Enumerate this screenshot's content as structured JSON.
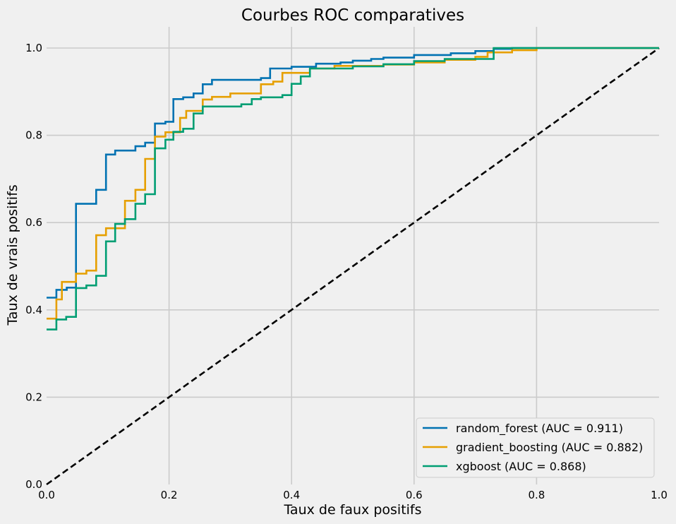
{
  "chart_data": {
    "type": "line",
    "title": "Courbes ROC comparatives",
    "xlabel": "Taux de faux positifs",
    "ylabel": "Taux de vrais positifs",
    "xlim": [
      0.0,
      1.0
    ],
    "ylim": [
      0.0,
      1.0
    ],
    "xticks": [
      "0.0",
      "0.2",
      "0.4",
      "0.6",
      "0.8",
      "1.0"
    ],
    "yticks": [
      "0.0",
      "0.2",
      "0.4",
      "0.6",
      "0.8",
      "1.0"
    ],
    "grid": true,
    "legend_position": "lower-right",
    "chance_line": {
      "x": [
        0,
        1
      ],
      "y": [
        0,
        1
      ],
      "color": "#000000",
      "style": "dashed"
    },
    "series": [
      {
        "name": "random_forest (AUC = 0.911)",
        "color": "#0072B2",
        "x": [
          0.0,
          0.016,
          0.016,
          0.033,
          0.033,
          0.048,
          0.048,
          0.081,
          0.081,
          0.097,
          0.097,
          0.112,
          0.112,
          0.145,
          0.145,
          0.161,
          0.161,
          0.177,
          0.177,
          0.194,
          0.194,
          0.207,
          0.207,
          0.223,
          0.223,
          0.24,
          0.24,
          0.255,
          0.255,
          0.27,
          0.27,
          0.35,
          0.35,
          0.365,
          0.365,
          0.4,
          0.4,
          0.44,
          0.44,
          0.48,
          0.48,
          0.5,
          0.5,
          0.53,
          0.53,
          0.55,
          0.55,
          0.6,
          0.6,
          0.66,
          0.66,
          0.7,
          0.7,
          0.73,
          0.73,
          0.76,
          0.76,
          1.0
        ],
        "y": [
          0.428,
          0.428,
          0.446,
          0.446,
          0.451,
          0.451,
          0.643,
          0.643,
          0.675,
          0.675,
          0.756,
          0.756,
          0.765,
          0.765,
          0.775,
          0.775,
          0.783,
          0.783,
          0.827,
          0.827,
          0.831,
          0.831,
          0.883,
          0.883,
          0.887,
          0.887,
          0.896,
          0.896,
          0.917,
          0.917,
          0.927,
          0.927,
          0.931,
          0.931,
          0.953,
          0.953,
          0.957,
          0.957,
          0.964,
          0.964,
          0.967,
          0.967,
          0.971,
          0.971,
          0.975,
          0.975,
          0.978,
          0.978,
          0.984,
          0.984,
          0.988,
          0.988,
          0.993,
          0.993,
          0.998,
          0.998,
          1.0,
          1.0
        ]
      },
      {
        "name": "gradient_boosting (AUC = 0.882)",
        "color": "#E69F00",
        "x": [
          0.0,
          0.016,
          0.016,
          0.025,
          0.025,
          0.048,
          0.048,
          0.065,
          0.065,
          0.081,
          0.081,
          0.097,
          0.097,
          0.128,
          0.128,
          0.145,
          0.145,
          0.161,
          0.161,
          0.177,
          0.177,
          0.194,
          0.194,
          0.218,
          0.218,
          0.228,
          0.228,
          0.255,
          0.255,
          0.27,
          0.27,
          0.3,
          0.3,
          0.35,
          0.35,
          0.37,
          0.37,
          0.385,
          0.385,
          0.43,
          0.43,
          0.47,
          0.47,
          0.55,
          0.55,
          0.6,
          0.6,
          0.65,
          0.65,
          0.7,
          0.7,
          0.72,
          0.72,
          0.76,
          0.76,
          0.8,
          0.8,
          1.0
        ],
        "y": [
          0.38,
          0.38,
          0.424,
          0.424,
          0.464,
          0.464,
          0.483,
          0.483,
          0.49,
          0.49,
          0.571,
          0.571,
          0.587,
          0.587,
          0.65,
          0.65,
          0.675,
          0.675,
          0.746,
          0.746,
          0.797,
          0.797,
          0.807,
          0.807,
          0.84,
          0.84,
          0.856,
          0.856,
          0.882,
          0.882,
          0.888,
          0.888,
          0.896,
          0.896,
          0.917,
          0.917,
          0.923,
          0.923,
          0.943,
          0.943,
          0.953,
          0.953,
          0.959,
          0.959,
          0.962,
          0.962,
          0.967,
          0.967,
          0.973,
          0.973,
          0.98,
          0.98,
          0.99,
          0.99,
          0.995,
          0.995,
          1.0,
          1.0
        ]
      },
      {
        "name": "xgboost (AUC = 0.868)",
        "color": "#009E73",
        "x": [
          0.0,
          0.016,
          0.016,
          0.032,
          0.032,
          0.048,
          0.048,
          0.065,
          0.065,
          0.081,
          0.081,
          0.097,
          0.097,
          0.112,
          0.112,
          0.128,
          0.128,
          0.145,
          0.145,
          0.161,
          0.161,
          0.177,
          0.177,
          0.194,
          0.194,
          0.207,
          0.207,
          0.223,
          0.223,
          0.24,
          0.24,
          0.255,
          0.255,
          0.318,
          0.318,
          0.335,
          0.335,
          0.35,
          0.35,
          0.385,
          0.385,
          0.4,
          0.4,
          0.415,
          0.415,
          0.43,
          0.43,
          0.5,
          0.5,
          0.55,
          0.55,
          0.6,
          0.6,
          0.65,
          0.65,
          0.73,
          0.73,
          1.0
        ],
        "y": [
          0.355,
          0.355,
          0.378,
          0.378,
          0.384,
          0.384,
          0.45,
          0.45,
          0.456,
          0.456,
          0.478,
          0.478,
          0.557,
          0.557,
          0.597,
          0.597,
          0.608,
          0.608,
          0.643,
          0.643,
          0.665,
          0.665,
          0.77,
          0.77,
          0.79,
          0.79,
          0.808,
          0.808,
          0.815,
          0.815,
          0.85,
          0.85,
          0.866,
          0.866,
          0.871,
          0.871,
          0.883,
          0.883,
          0.887,
          0.887,
          0.892,
          0.892,
          0.918,
          0.918,
          0.935,
          0.935,
          0.953,
          0.953,
          0.958,
          0.958,
          0.963,
          0.963,
          0.97,
          0.97,
          0.975,
          0.975,
          1.0,
          1.0
        ]
      }
    ]
  }
}
